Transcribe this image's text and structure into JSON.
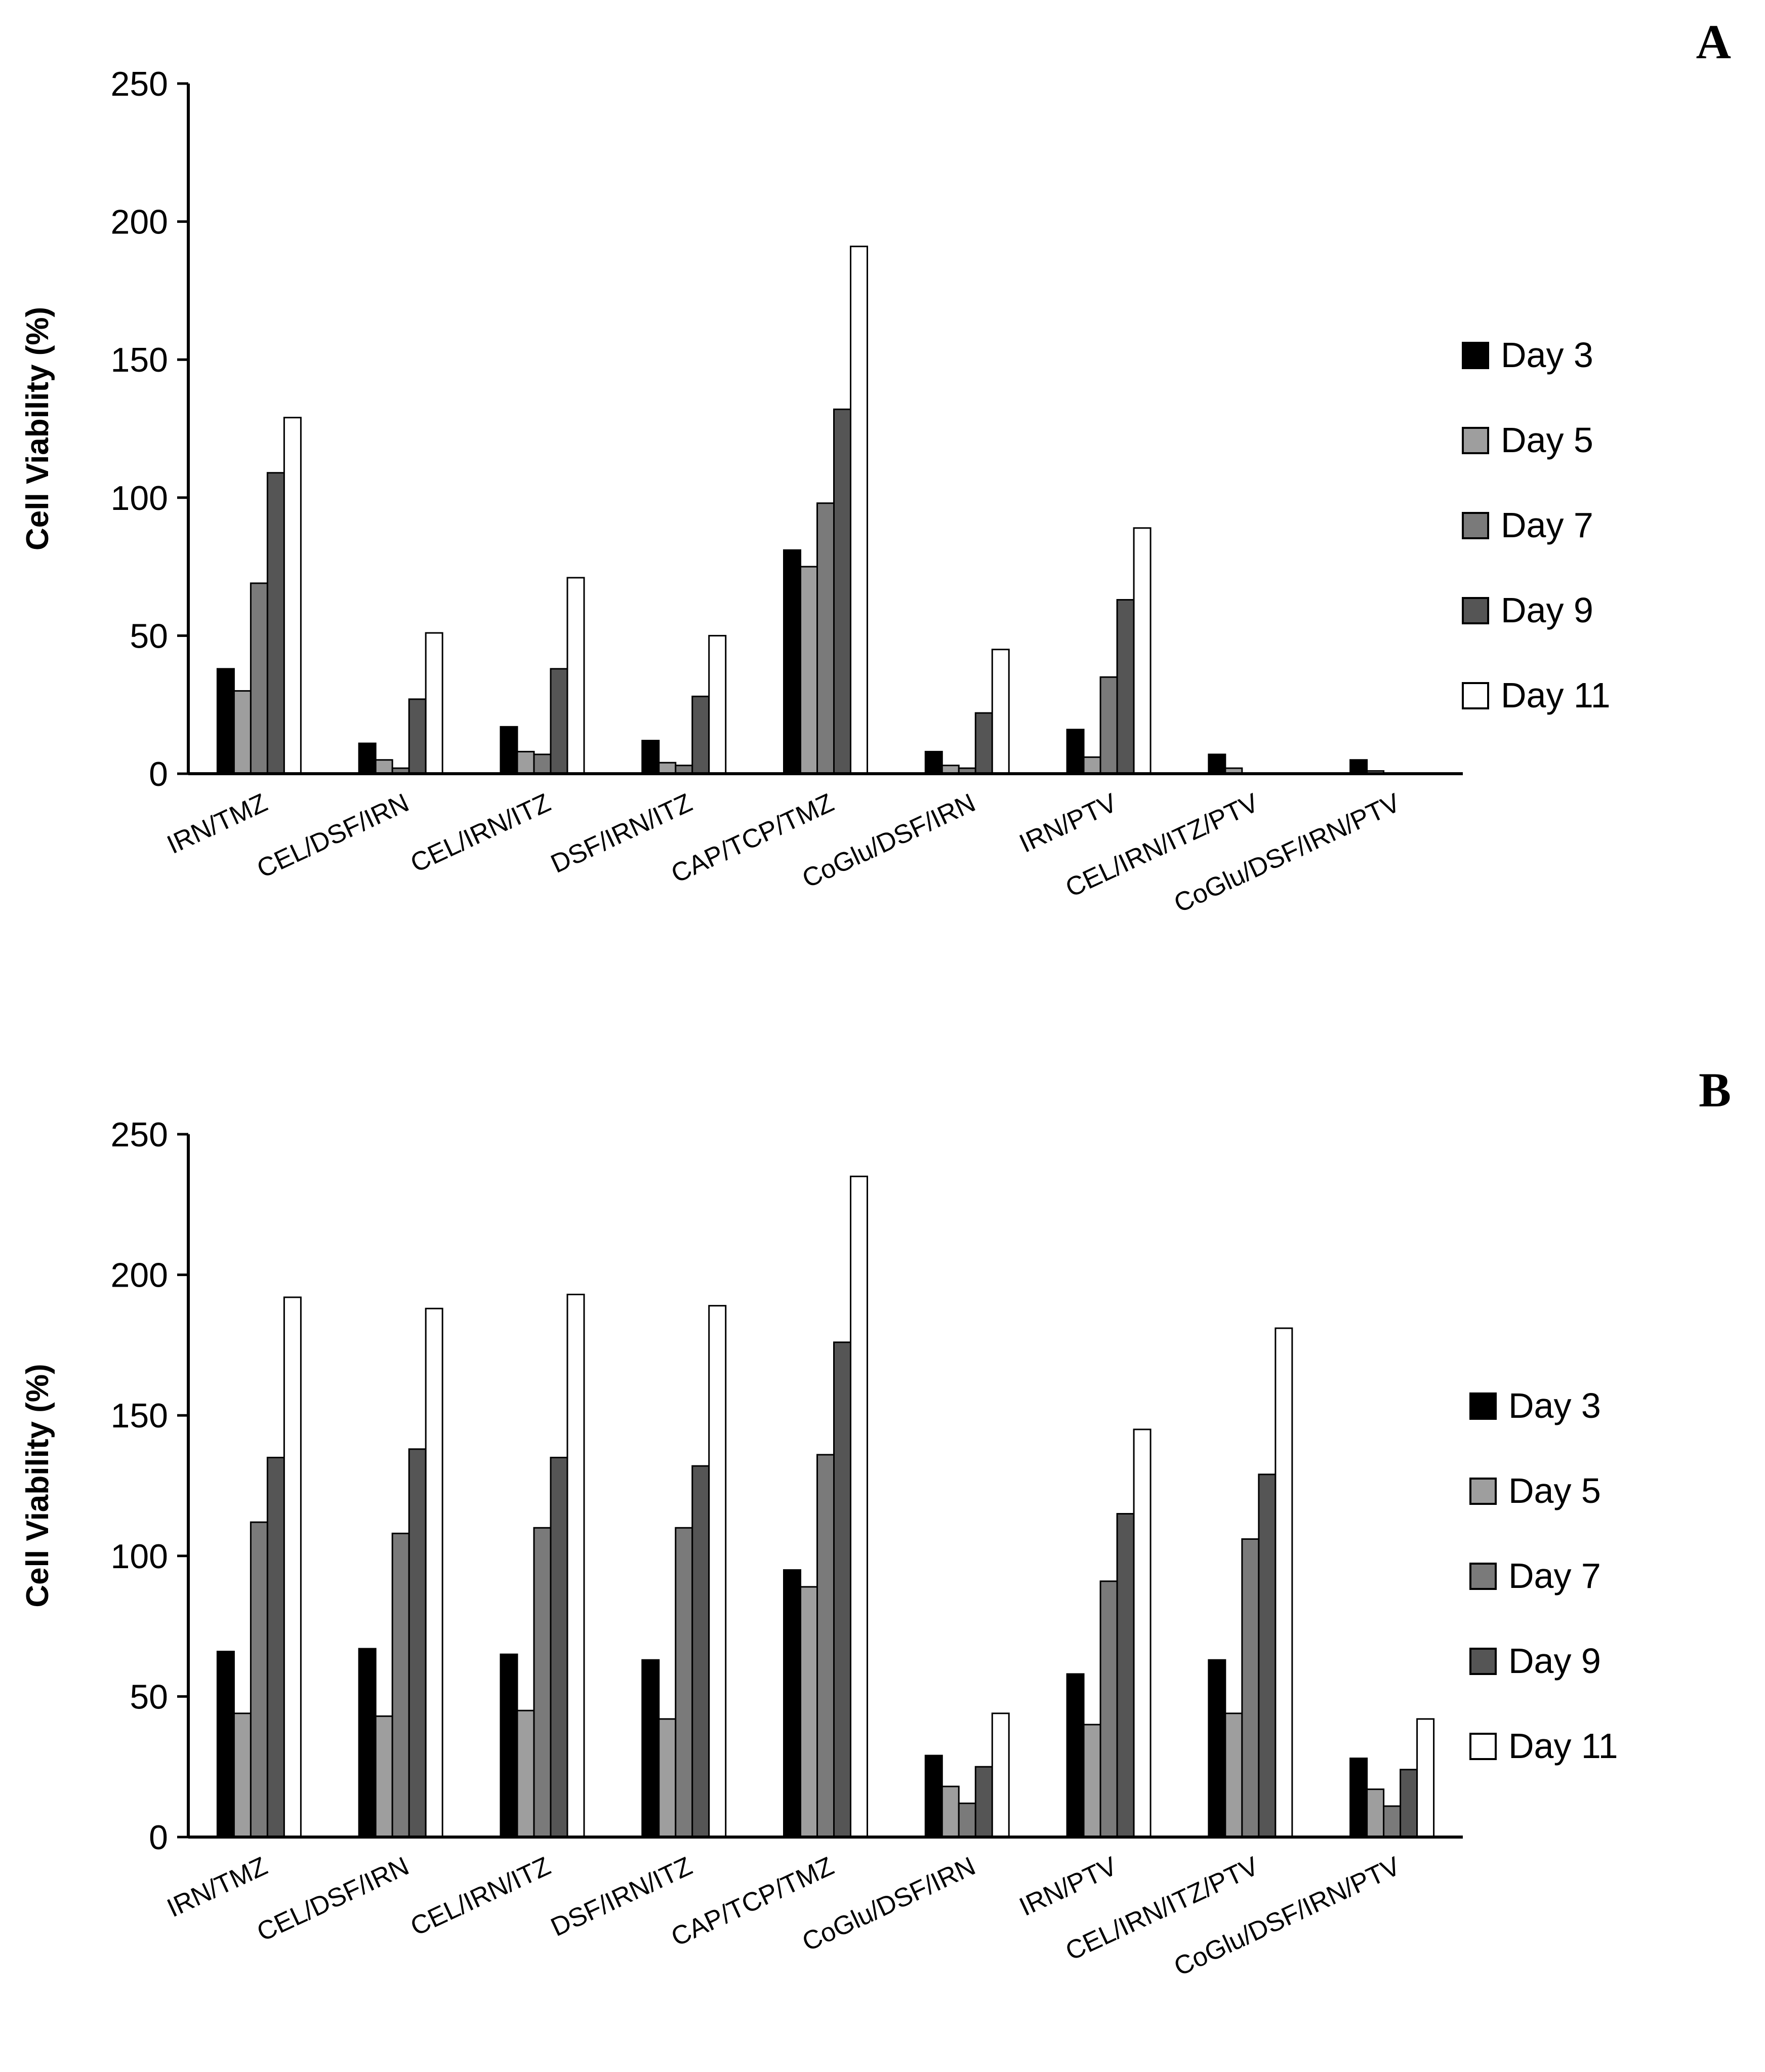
{
  "series_style": [
    {
      "name": "Day 3",
      "color": "#000000"
    },
    {
      "name": "Day 5",
      "color": "#9e9e9e"
    },
    {
      "name": "Day 7",
      "color": "#7a7a7a"
    },
    {
      "name": "Day 9",
      "color": "#555555"
    },
    {
      "name": "Day 11",
      "color": "#ffffff"
    }
  ],
  "chart_data": [
    {
      "panel": "A",
      "type": "bar",
      "ylabel": "Cell Viability (%)",
      "xlabel": "",
      "ylim": [
        0,
        250
      ],
      "yticks": [
        0,
        50,
        100,
        150,
        200,
        250
      ],
      "legend_position": "right",
      "categories": [
        "IRN/TMZ",
        "CEL/DSF/IRN",
        "CEL/IRN/ITZ",
        "DSF/IRN/ITZ",
        "CAP/TCP/TMZ",
        "CoGlu/DSF/IRN",
        "IRN/PTV",
        "CEL/IRN/ITZ/PTV",
        "CoGlu/DSF/IRN/PTV"
      ],
      "series": [
        {
          "name": "Day 3",
          "values": [
            38,
            11,
            17,
            12,
            81,
            8,
            16,
            7,
            5
          ]
        },
        {
          "name": "Day 5",
          "values": [
            30,
            5,
            8,
            4,
            75,
            3,
            6,
            2,
            1
          ]
        },
        {
          "name": "Day 7",
          "values": [
            69,
            2,
            7,
            3,
            98,
            2,
            35,
            0,
            0
          ]
        },
        {
          "name": "Day 9",
          "values": [
            109,
            27,
            38,
            28,
            132,
            22,
            63,
            0,
            0
          ]
        },
        {
          "name": "Day 11",
          "values": [
            129,
            51,
            71,
            50,
            191,
            45,
            89,
            0,
            0
          ]
        }
      ]
    },
    {
      "panel": "B",
      "type": "bar",
      "ylabel": "Cell Viability (%)",
      "xlabel": "",
      "ylim": [
        0,
        250
      ],
      "yticks": [
        0,
        50,
        100,
        150,
        200,
        250
      ],
      "legend_position": "right",
      "categories": [
        "IRN/TMZ",
        "CEL/DSF/IRN",
        "CEL/IRN/ITZ",
        "DSF/IRN/ITZ",
        "CAP/TCP/TMZ",
        "CoGlu/DSF/IRN",
        "IRN/PTV",
        "CEL/IRN/ITZ/PTV",
        "CoGlu/DSF/IRN/PTV"
      ],
      "series": [
        {
          "name": "Day 3",
          "values": [
            66,
            67,
            65,
            63,
            95,
            29,
            58,
            63,
            28
          ]
        },
        {
          "name": "Day 5",
          "values": [
            44,
            43,
            45,
            42,
            89,
            18,
            40,
            44,
            17
          ]
        },
        {
          "name": "Day 7",
          "values": [
            112,
            108,
            110,
            110,
            136,
            12,
            91,
            106,
            11
          ]
        },
        {
          "name": "Day 9",
          "values": [
            135,
            138,
            135,
            132,
            176,
            25,
            115,
            129,
            24
          ]
        },
        {
          "name": "Day 11",
          "values": [
            192,
            188,
            193,
            189,
            235,
            44,
            145,
            181,
            42
          ]
        }
      ]
    }
  ]
}
